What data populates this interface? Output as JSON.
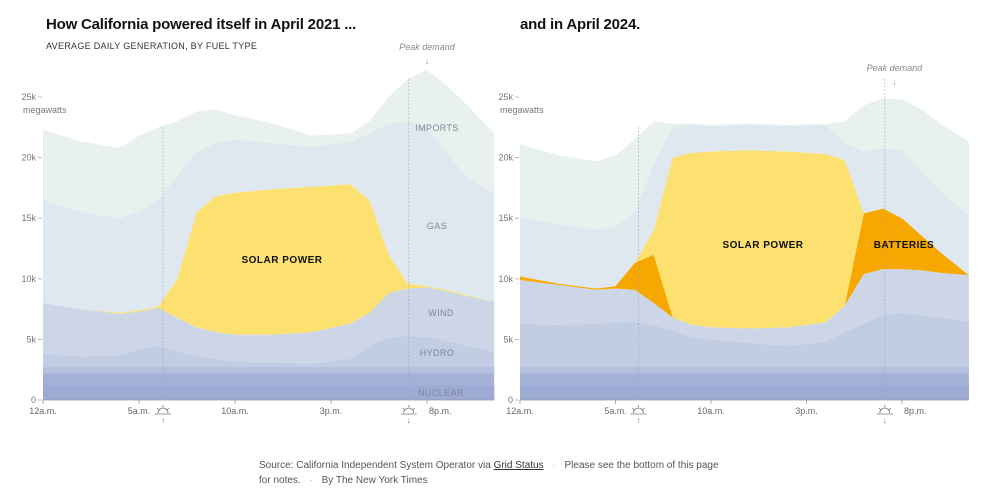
{
  "titles": {
    "left": "How California powered itself in April 2021 ...",
    "right": "and in April 2024.",
    "subtitle": "AVERAGE DAILY GENERATION, BY FUEL TYPE"
  },
  "footer": {
    "source_prefix": "Source: California Independent System Operator via",
    "source_link": "Grid Status",
    "notes": "Please see the bottom of this page for notes.",
    "byline": "By The New York Times"
  },
  "colors": {
    "nuclear": "#a3b1d7",
    "hydro": "#c2cce2",
    "wind": "#ccd6e7",
    "batteries": "#f6a800",
    "solar": "#fde170",
    "gas": "#dee8ee",
    "imports": "#e8f1ee"
  },
  "chart_data": [
    {
      "type": "area",
      "stacked": true,
      "title": "How California powered itself in April 2021 ...",
      "subtitle": "AVERAGE DAILY GENERATION, BY FUEL TYPE",
      "ylabel": "megawatts",
      "ylim": [
        0,
        25000
      ],
      "yticks": [
        "0",
        "5k",
        "10k",
        "15k",
        "20k",
        "25k"
      ],
      "xticks": [
        "12a.m.",
        "5a.m.",
        "10a.m.",
        "3p.m.",
        "8p.m."
      ],
      "x_hours": [
        0,
        2,
        4,
        5,
        6,
        7,
        8,
        9,
        10,
        12,
        14,
        16,
        17,
        18,
        19,
        20,
        21,
        22,
        23.5
      ],
      "series": [
        {
          "name": "NUCLEAR",
          "key": "nuclear",
          "values": [
            2200,
            2200,
            2200,
            2200,
            2200,
            2200,
            2200,
            2200,
            2200,
            2200,
            2200,
            2200,
            2200,
            2200,
            2200,
            2200,
            2200,
            2200,
            2200
          ]
        },
        {
          "name": "HYDRO",
          "key": "hydro",
          "values": [
            1600,
            1400,
            1500,
            2000,
            2300,
            1800,
            1400,
            1200,
            1000,
            900,
            800,
            1200,
            2300,
            2900,
            3100,
            3000,
            2700,
            2300,
            1800
          ]
        },
        {
          "name": "WIND",
          "key": "wind",
          "values": [
            4200,
            3900,
            3400,
            3100,
            3100,
            2800,
            2400,
            2200,
            2200,
            2300,
            2600,
            2900,
            2700,
            3700,
            3900,
            4100,
            4100,
            4100,
            4100
          ]
        },
        {
          "name": "SOLAR POWER",
          "key": "solar",
          "values": [
            0,
            0,
            100,
            100,
            100,
            3200,
            9500,
            11200,
            11700,
            12000,
            12000,
            11500,
            9300,
            3200,
            400,
            100,
            100,
            100,
            0
          ]
        },
        {
          "name": "GAS",
          "key": "gas",
          "values": [
            8500,
            8000,
            7800,
            8200,
            8800,
            8500,
            5000,
            4400,
            4400,
            3800,
            3300,
            3500,
            5500,
            10800,
            13400,
            13100,
            11400,
            9800,
            8900
          ]
        },
        {
          "name": "IMPORTS",
          "key": "imports",
          "values": [
            5800,
            5800,
            5800,
            6200,
            6000,
            4500,
            3300,
            2800,
            2000,
            1600,
            900,
            700,
            1000,
            2200,
            3500,
            4700,
            5500,
            6000,
            5000
          ]
        }
      ],
      "annotations": {
        "peak": "Peak demand",
        "sunrise_hour": 6.25,
        "sunset_hour": 19.05,
        "peak_hour": 20
      }
    },
    {
      "type": "area",
      "stacked": true,
      "title": "and in April 2024.",
      "ylabel": "megawatts",
      "ylim": [
        0,
        25000
      ],
      "yticks": [
        "0",
        "5k",
        "10k",
        "15k",
        "20k",
        "25k"
      ],
      "xticks": [
        "12a.m.",
        "5a.m.",
        "10a.m.",
        "3p.m.",
        "8p.m."
      ],
      "x_hours": [
        0,
        2,
        4,
        5,
        6,
        7,
        8,
        9,
        10,
        12,
        14,
        16,
        17,
        18,
        19,
        20,
        21,
        22,
        23.5
      ],
      "series": [
        {
          "name": "NUCLEAR",
          "key": "nuclear",
          "values": [
            2200,
            2200,
            2200,
            2200,
            2200,
            2200,
            2200,
            2200,
            2200,
            2200,
            2200,
            2200,
            2200,
            2200,
            2200,
            2200,
            2200,
            2200,
            2200
          ]
        },
        {
          "name": "HYDRO",
          "key": "hydro",
          "values": [
            4100,
            4000,
            4100,
            4200,
            4300,
            4000,
            3500,
            3000,
            2800,
            2500,
            2300,
            2600,
            3400,
            4100,
            4800,
            5000,
            4800,
            4600,
            4300
          ]
        },
        {
          "name": "WIND",
          "key": "wind",
          "values": [
            3600,
            3300,
            2800,
            2800,
            2600,
            1800,
            1100,
            1000,
            1000,
            1200,
            1500,
            1600,
            2200,
            4100,
            3800,
            3600,
            3700,
            3700,
            3800
          ]
        },
        {
          "name": "BATTERIES",
          "key": "batteries",
          "values": [
            300,
            100,
            100,
            200,
            2200,
            4000,
            0,
            0,
            0,
            0,
            0,
            0,
            0,
            5000,
            5000,
            4200,
            2900,
            1700,
            0
          ]
        },
        {
          "name": "SOLAR POWER",
          "key": "solar",
          "values": [
            0,
            0,
            0,
            0,
            0,
            2000,
            13200,
            14200,
            14500,
            14700,
            14500,
            13900,
            12000,
            0,
            0,
            0,
            0,
            0,
            0
          ]
        },
        {
          "name": "GAS",
          "key": "gas",
          "values": [
            4900,
            4900,
            4900,
            4900,
            4200,
            5500,
            2500,
            2300,
            2100,
            2100,
            2100,
            2400,
            1400,
            5100,
            5000,
            5600,
            5400,
            5100,
            4900
          ]
        },
        {
          "name": "IMPORTS",
          "key": "imports",
          "values": [
            6000,
            5700,
            5600,
            5900,
            6000,
            3500,
            300,
            100,
            100,
            100,
            100,
            100,
            1800,
            3800,
            4100,
            4200,
            5000,
            5500,
            6100
          ]
        }
      ],
      "annotations": {
        "peak": "Peak demand",
        "sunrise_hour": 6.2,
        "sunset_hour": 19.1,
        "peak_hour": 19.6
      }
    }
  ]
}
